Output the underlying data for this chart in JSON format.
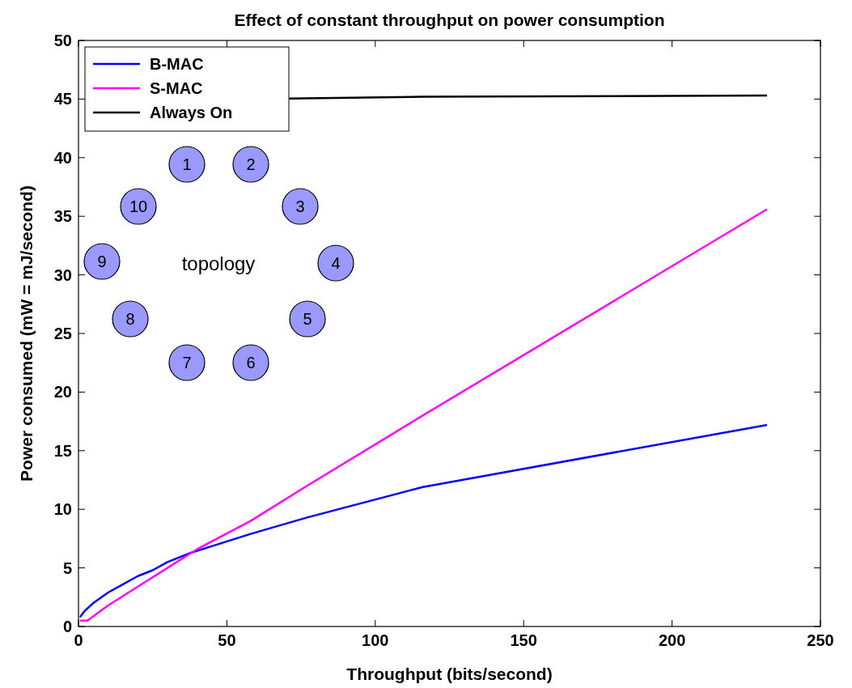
{
  "chart_data": {
    "type": "line",
    "title": "Effect of constant throughput on power consumption",
    "xlabel": "Throughput (bits/second)",
    "ylabel": "Power consumed (mW = mJ/second)",
    "xlim": [
      0,
      250
    ],
    "ylim": [
      0,
      50
    ],
    "xticks": [
      0,
      50,
      100,
      150,
      200,
      250
    ],
    "yticks": [
      0,
      5,
      10,
      15,
      20,
      25,
      30,
      35,
      40,
      45,
      50
    ],
    "grid": false,
    "legend": "top left",
    "line_style": "solid",
    "marker": "none",
    "annotations": [
      "topology",
      "1",
      "2",
      "3",
      "4",
      "5",
      "6",
      "7",
      "8",
      "9",
      "10"
    ],
    "series": [
      {
        "name": "B-MAC",
        "color": "#0000ff",
        "x": [
          0.5,
          2,
          5,
          10,
          15,
          20,
          25,
          30,
          38,
          58,
          77,
          116,
          232
        ],
        "values": [
          0.8,
          1.3,
          2,
          2.9,
          3.6,
          4.3,
          4.8,
          5.5,
          6.3,
          7.9,
          9.3,
          11.9,
          17.2
        ]
      },
      {
        "name": "S-MAC",
        "color": "#ff00ff",
        "x": [
          0.5,
          3,
          10,
          20,
          30,
          40,
          58,
          77,
          116,
          232
        ],
        "values": [
          0.5,
          0.5,
          1.8,
          3.4,
          5,
          6.6,
          9,
          12,
          18,
          35.6
        ]
      },
      {
        "name": "Always On",
        "color": "#000000",
        "x": [
          71,
          116,
          232
        ],
        "values": [
          45.05,
          45.2,
          45.3
        ]
      }
    ]
  }
}
